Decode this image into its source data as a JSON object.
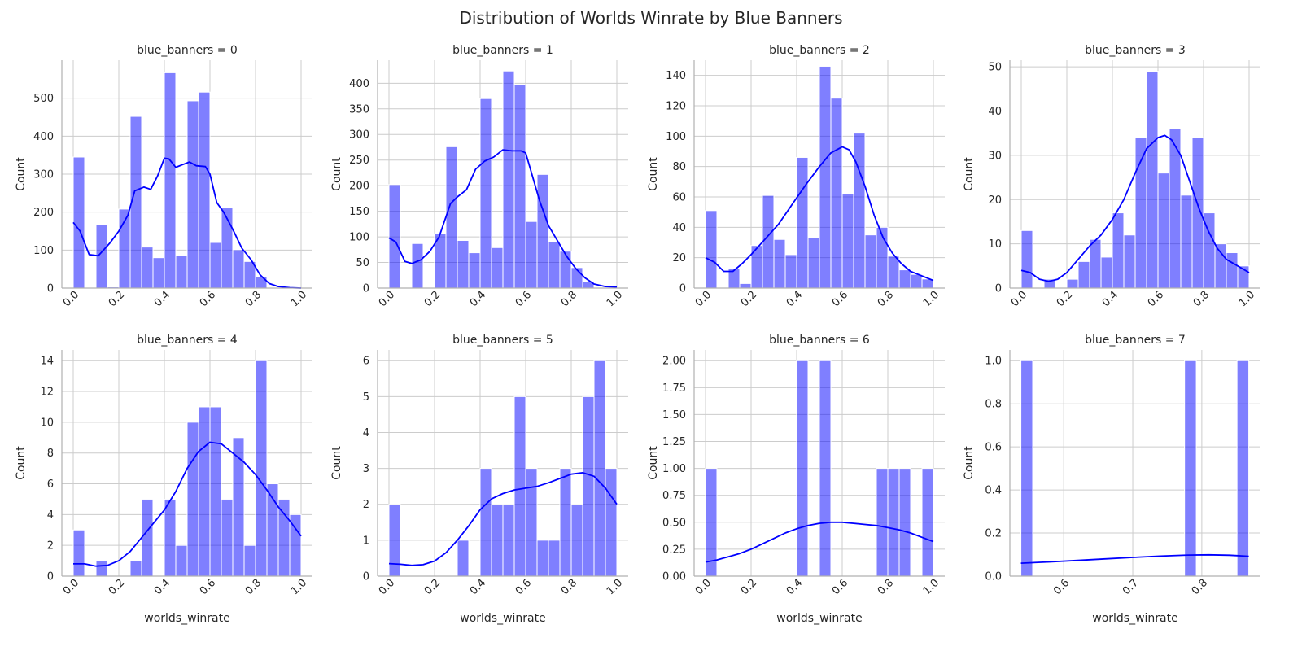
{
  "title": "Distribution of Worlds Winrate by Blue Banners",
  "chart_data": {
    "type": "bar",
    "title": "Distribution of Worlds Winrate by Blue Banners",
    "subtype": "histogram with kde, faceted 2x4",
    "bar_color": "#0000ff",
    "bar_opacity": 0.5,
    "kde_color": "#0000ff",
    "grid": true,
    "xlabel": "worlds_winrate",
    "ylabel": "Count",
    "panels": [
      {
        "title": "blue_banners = 0",
        "xlim": [
          -0.05,
          1.05
        ],
        "ylim": [
          0,
          600
        ],
        "xticks": [
          0.0,
          0.2,
          0.4,
          0.6,
          0.8,
          1.0
        ],
        "xtick_labels": [
          "0.0",
          "0.2",
          "0.4",
          "0.6",
          "0.8",
          "1.0"
        ],
        "yticks": [
          0,
          100,
          200,
          300,
          400,
          500
        ],
        "ytick_labels": [
          "0",
          "100",
          "200",
          "300",
          "400",
          "500"
        ],
        "show_xlabel": false,
        "bin_start": 0.0,
        "bin_width": 0.05,
        "counts": [
          345,
          0,
          167,
          3,
          208,
          452,
          108,
          80,
          567,
          86,
          493,
          516,
          120,
          211,
          101,
          70,
          29,
          0,
          0,
          0
        ],
        "kde": [
          [
            0.0,
            173
          ],
          [
            0.03,
            150
          ],
          [
            0.07,
            88
          ],
          [
            0.11,
            85
          ],
          [
            0.16,
            118
          ],
          [
            0.2,
            150
          ],
          [
            0.24,
            192
          ],
          [
            0.27,
            256
          ],
          [
            0.31,
            266
          ],
          [
            0.34,
            260
          ],
          [
            0.37,
            295
          ],
          [
            0.4,
            342
          ],
          [
            0.42,
            340
          ],
          [
            0.45,
            318
          ],
          [
            0.48,
            325
          ],
          [
            0.51,
            332
          ],
          [
            0.54,
            322
          ],
          [
            0.58,
            320
          ],
          [
            0.6,
            300
          ],
          [
            0.63,
            225
          ],
          [
            0.66,
            200
          ],
          [
            0.7,
            155
          ],
          [
            0.74,
            105
          ],
          [
            0.78,
            75
          ],
          [
            0.82,
            35
          ],
          [
            0.86,
            12
          ],
          [
            0.9,
            4
          ],
          [
            0.95,
            1
          ],
          [
            1.0,
            0
          ]
        ]
      },
      {
        "title": "blue_banners = 1",
        "xlim": [
          -0.05,
          1.05
        ],
        "ylim": [
          0,
          445
        ],
        "xticks": [
          0.0,
          0.2,
          0.4,
          0.6,
          0.8,
          1.0
        ],
        "xtick_labels": [
          "0.0",
          "0.2",
          "0.4",
          "0.6",
          "0.8",
          "1.0"
        ],
        "yticks": [
          0,
          50,
          100,
          150,
          200,
          250,
          300,
          350,
          400
        ],
        "ytick_labels": [
          "0",
          "50",
          "100",
          "150",
          "200",
          "250",
          "300",
          "350",
          "400"
        ],
        "show_xlabel": false,
        "bin_start": 0.0,
        "bin_width": 0.05,
        "counts": [
          202,
          0,
          87,
          0,
          106,
          276,
          93,
          69,
          370,
          79,
          424,
          397,
          130,
          222,
          91,
          72,
          40,
          12,
          0,
          0
        ],
        "kde": [
          [
            0.0,
            98
          ],
          [
            0.03,
            90
          ],
          [
            0.07,
            52
          ],
          [
            0.1,
            48
          ],
          [
            0.14,
            55
          ],
          [
            0.18,
            72
          ],
          [
            0.22,
            100
          ],
          [
            0.27,
            165
          ],
          [
            0.3,
            178
          ],
          [
            0.34,
            192
          ],
          [
            0.38,
            232
          ],
          [
            0.42,
            248
          ],
          [
            0.46,
            256
          ],
          [
            0.5,
            270
          ],
          [
            0.54,
            268
          ],
          [
            0.58,
            268
          ],
          [
            0.6,
            264
          ],
          [
            0.63,
            218
          ],
          [
            0.66,
            172
          ],
          [
            0.7,
            122
          ],
          [
            0.74,
            92
          ],
          [
            0.78,
            62
          ],
          [
            0.82,
            38
          ],
          [
            0.86,
            20
          ],
          [
            0.9,
            8
          ],
          [
            0.95,
            3
          ],
          [
            1.0,
            2
          ]
        ]
      },
      {
        "title": "blue_banners = 2",
        "xlim": [
          -0.05,
          1.05
        ],
        "ylim": [
          0,
          150
        ],
        "xticks": [
          0.0,
          0.2,
          0.4,
          0.6,
          0.8,
          1.0
        ],
        "xtick_labels": [
          "0.0",
          "0.2",
          "0.4",
          "0.6",
          "0.8",
          "1.0"
        ],
        "yticks": [
          0,
          20,
          40,
          60,
          80,
          100,
          120,
          140
        ],
        "ytick_labels": [
          "0",
          "20",
          "40",
          "60",
          "80",
          "100",
          "120",
          "140"
        ],
        "show_xlabel": false,
        "bin_start": 0.0,
        "bin_width": 0.05,
        "counts": [
          51,
          0,
          13,
          3,
          28,
          61,
          32,
          22,
          86,
          33,
          146,
          125,
          62,
          102,
          35,
          40,
          21,
          12,
          9,
          6
        ],
        "kde": [
          [
            0.0,
            20
          ],
          [
            0.04,
            17
          ],
          [
            0.08,
            11
          ],
          [
            0.12,
            11
          ],
          [
            0.16,
            16
          ],
          [
            0.2,
            22
          ],
          [
            0.26,
            32
          ],
          [
            0.32,
            42
          ],
          [
            0.38,
            55
          ],
          [
            0.44,
            68
          ],
          [
            0.5,
            80
          ],
          [
            0.55,
            89
          ],
          [
            0.6,
            93
          ],
          [
            0.63,
            91
          ],
          [
            0.66,
            83
          ],
          [
            0.7,
            67
          ],
          [
            0.74,
            48
          ],
          [
            0.78,
            33
          ],
          [
            0.82,
            23
          ],
          [
            0.86,
            16
          ],
          [
            0.9,
            11
          ],
          [
            0.95,
            8
          ],
          [
            1.0,
            5
          ]
        ]
      },
      {
        "title": "blue_banners = 3",
        "xlim": [
          -0.05,
          1.05
        ],
        "ylim": [
          0,
          51.5
        ],
        "xticks": [
          0.0,
          0.2,
          0.4,
          0.6,
          0.8,
          1.0
        ],
        "xtick_labels": [
          "0.0",
          "0.2",
          "0.4",
          "0.6",
          "0.8",
          "1.0"
        ],
        "yticks": [
          0,
          10,
          20,
          30,
          40,
          50
        ],
        "ytick_labels": [
          "0",
          "10",
          "20",
          "30",
          "40",
          "50"
        ],
        "show_xlabel": false,
        "bin_start": 0.0,
        "bin_width": 0.05,
        "counts": [
          13,
          0,
          2,
          0,
          2,
          6,
          11,
          7,
          17,
          12,
          34,
          49,
          26,
          36,
          21,
          34,
          17,
          10,
          8,
          5
        ],
        "kde": [
          [
            0.0,
            4
          ],
          [
            0.04,
            3.5
          ],
          [
            0.08,
            2
          ],
          [
            0.12,
            1.5
          ],
          [
            0.16,
            2
          ],
          [
            0.2,
            3.5
          ],
          [
            0.25,
            6.5
          ],
          [
            0.3,
            9.5
          ],
          [
            0.35,
            12
          ],
          [
            0.4,
            15.5
          ],
          [
            0.45,
            20
          ],
          [
            0.5,
            26
          ],
          [
            0.55,
            31.5
          ],
          [
            0.6,
            34
          ],
          [
            0.63,
            34.5
          ],
          [
            0.66,
            33.5
          ],
          [
            0.7,
            30
          ],
          [
            0.74,
            24
          ],
          [
            0.78,
            18
          ],
          [
            0.82,
            13
          ],
          [
            0.86,
            9
          ],
          [
            0.9,
            6.5
          ],
          [
            0.95,
            5
          ],
          [
            1.0,
            3.5
          ]
        ]
      },
      {
        "title": "blue_banners = 4",
        "xlim": [
          -0.05,
          1.05
        ],
        "ylim": [
          0,
          14.7
        ],
        "xticks": [
          0.0,
          0.2,
          0.4,
          0.6,
          0.8,
          1.0
        ],
        "xtick_labels": [
          "0.0",
          "0.2",
          "0.4",
          "0.6",
          "0.8",
          "1.0"
        ],
        "yticks": [
          0,
          2,
          4,
          6,
          8,
          10,
          12,
          14
        ],
        "ytick_labels": [
          "0",
          "2",
          "4",
          "6",
          "8",
          "10",
          "12",
          "14"
        ],
        "show_xlabel": true,
        "bin_start": 0.0,
        "bin_width": 0.05,
        "counts": [
          3,
          0,
          1,
          0,
          0,
          1,
          5,
          0,
          5,
          2,
          10,
          11,
          11,
          5,
          9,
          2,
          14,
          6,
          5,
          4
        ],
        "kde": [
          [
            0.0,
            0.8
          ],
          [
            0.05,
            0.8
          ],
          [
            0.1,
            0.65
          ],
          [
            0.15,
            0.7
          ],
          [
            0.2,
            1.0
          ],
          [
            0.25,
            1.6
          ],
          [
            0.3,
            2.5
          ],
          [
            0.35,
            3.4
          ],
          [
            0.4,
            4.3
          ],
          [
            0.45,
            5.5
          ],
          [
            0.5,
            7.0
          ],
          [
            0.55,
            8.1
          ],
          [
            0.6,
            8.7
          ],
          [
            0.65,
            8.6
          ],
          [
            0.7,
            8.0
          ],
          [
            0.75,
            7.4
          ],
          [
            0.8,
            6.6
          ],
          [
            0.85,
            5.6
          ],
          [
            0.9,
            4.5
          ],
          [
            0.95,
            3.6
          ],
          [
            1.0,
            2.6
          ]
        ]
      },
      {
        "title": "blue_banners = 5",
        "xlim": [
          -0.05,
          1.05
        ],
        "ylim": [
          0,
          6.3
        ],
        "xticks": [
          0.0,
          0.2,
          0.4,
          0.6,
          0.8,
          1.0
        ],
        "xtick_labels": [
          "0.0",
          "0.2",
          "0.4",
          "0.6",
          "0.8",
          "1.0"
        ],
        "yticks": [
          0,
          1,
          2,
          3,
          4,
          5,
          6
        ],
        "ytick_labels": [
          "0",
          "1",
          "2",
          "3",
          "4",
          "5",
          "6"
        ],
        "show_xlabel": true,
        "bin_start": 0.0,
        "bin_width": 0.05,
        "counts": [
          2,
          0,
          0,
          0,
          0,
          0,
          1,
          0,
          3,
          2,
          2,
          5,
          3,
          1,
          1,
          3,
          2,
          5,
          6,
          3
        ],
        "kde": [
          [
            0.0,
            0.35
          ],
          [
            0.05,
            0.33
          ],
          [
            0.1,
            0.3
          ],
          [
            0.15,
            0.32
          ],
          [
            0.2,
            0.42
          ],
          [
            0.25,
            0.65
          ],
          [
            0.3,
            1.0
          ],
          [
            0.35,
            1.4
          ],
          [
            0.4,
            1.85
          ],
          [
            0.45,
            2.15
          ],
          [
            0.5,
            2.3
          ],
          [
            0.55,
            2.4
          ],
          [
            0.6,
            2.45
          ],
          [
            0.65,
            2.5
          ],
          [
            0.7,
            2.6
          ],
          [
            0.75,
            2.72
          ],
          [
            0.8,
            2.84
          ],
          [
            0.85,
            2.88
          ],
          [
            0.9,
            2.78
          ],
          [
            0.95,
            2.45
          ],
          [
            1.0,
            2.0
          ]
        ]
      },
      {
        "title": "blue_banners = 6",
        "xlim": [
          -0.05,
          1.05
        ],
        "ylim": [
          0,
          2.1
        ],
        "xticks": [
          0.0,
          0.2,
          0.4,
          0.6,
          0.8,
          1.0
        ],
        "xtick_labels": [
          "0.0",
          "0.2",
          "0.4",
          "0.6",
          "0.8",
          "1.0"
        ],
        "yticks": [
          0,
          0.25,
          0.5,
          0.75,
          1.0,
          1.25,
          1.5,
          1.75,
          2.0
        ],
        "ytick_labels": [
          "0.00",
          "0.25",
          "0.50",
          "0.75",
          "1.00",
          "1.25",
          "1.50",
          "1.75",
          "2.00"
        ],
        "show_xlabel": true,
        "bin_start": 0.0,
        "bin_width": 0.05,
        "counts": [
          1,
          0,
          0,
          0,
          0,
          0,
          0,
          0,
          2,
          0,
          2,
          0,
          0,
          0,
          0,
          1,
          1,
          1,
          0,
          1
        ],
        "kde": [
          [
            0.0,
            0.13
          ],
          [
            0.05,
            0.15
          ],
          [
            0.1,
            0.18
          ],
          [
            0.15,
            0.21
          ],
          [
            0.2,
            0.25
          ],
          [
            0.25,
            0.3
          ],
          [
            0.3,
            0.35
          ],
          [
            0.35,
            0.4
          ],
          [
            0.4,
            0.44
          ],
          [
            0.45,
            0.47
          ],
          [
            0.5,
            0.49
          ],
          [
            0.55,
            0.5
          ],
          [
            0.6,
            0.5
          ],
          [
            0.65,
            0.49
          ],
          [
            0.7,
            0.48
          ],
          [
            0.75,
            0.47
          ],
          [
            0.8,
            0.45
          ],
          [
            0.85,
            0.43
          ],
          [
            0.9,
            0.4
          ],
          [
            0.95,
            0.36
          ],
          [
            1.0,
            0.32
          ]
        ]
      },
      {
        "title": "blue_banners = 7",
        "xlim": [
          0.522,
          0.885
        ],
        "ylim": [
          0,
          1.05
        ],
        "xticks": [
          0.6,
          0.7,
          0.8
        ],
        "xtick_labels": [
          "0.6",
          "0.7",
          "0.8"
        ],
        "yticks": [
          0,
          0.2,
          0.4,
          0.6,
          0.8,
          1.0
        ],
        "ytick_labels": [
          "0.0",
          "0.2",
          "0.4",
          "0.6",
          "0.8",
          "1.0"
        ],
        "show_xlabel": true,
        "bins": [
          [
            0.538,
            0.555,
            1
          ],
          [
            0.775,
            0.792,
            1
          ],
          [
            0.851,
            0.868,
            1
          ]
        ],
        "kde": [
          [
            0.538,
            0.06
          ],
          [
            0.58,
            0.066
          ],
          [
            0.62,
            0.073
          ],
          [
            0.66,
            0.08
          ],
          [
            0.7,
            0.087
          ],
          [
            0.74,
            0.093
          ],
          [
            0.78,
            0.098
          ],
          [
            0.81,
            0.099
          ],
          [
            0.84,
            0.097
          ],
          [
            0.868,
            0.092
          ]
        ]
      }
    ]
  }
}
